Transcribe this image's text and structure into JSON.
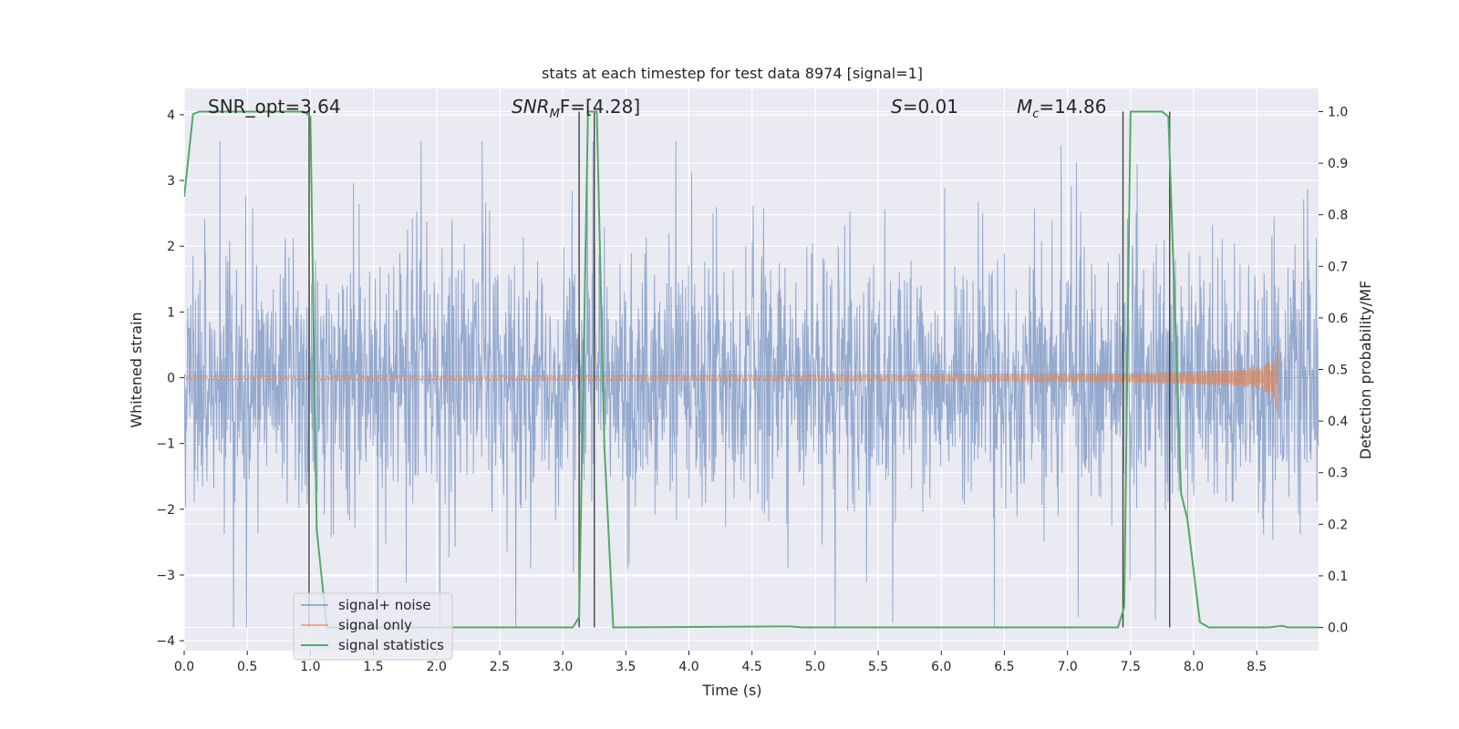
{
  "chart_data": {
    "type": "line",
    "title": "stats at each timestep for test data 8974 [signal=1]",
    "xlabel": "Time (s)",
    "ylabel_left": "Whitened strain",
    "ylabel_right": "Detection probability/MF",
    "xlim": [
      0.0,
      8.99
    ],
    "ylim_left": [
      -4.15,
      4.4
    ],
    "ylim_right": [
      -0.045,
      1.045
    ],
    "xticks": [
      "0.0",
      "0.5",
      "1.0",
      "1.5",
      "2.0",
      "2.5",
      "3.0",
      "3.5",
      "4.0",
      "4.5",
      "5.0",
      "5.5",
      "6.0",
      "6.5",
      "7.0",
      "7.5",
      "8.0",
      "8.5"
    ],
    "yticks_left": [
      "−4",
      "−3",
      "−2",
      "−1",
      "0",
      "1",
      "2",
      "3",
      "4"
    ],
    "yticks_right": [
      "0.0",
      "0.1",
      "0.2",
      "0.3",
      "0.4",
      "0.5",
      "0.6",
      "0.7",
      "0.8",
      "0.9",
      "1.0"
    ],
    "grid": true,
    "background": "#eaeaf2",
    "annotations": {
      "snr_opt": "SNR_opt=3.64",
      "snr_mf_base": "SNR",
      "snr_mf_sub": "M",
      "snr_mf_rest": "F=[4.28]",
      "s_base": "S",
      "s_rest": "=0.01",
      "mc_base": "M",
      "mc_sub": "c",
      "mc_rest": "=14.86"
    },
    "legend": {
      "placement": "lower-left",
      "entries": [
        {
          "label": "signal+ noise",
          "color": "#4c72b0"
        },
        {
          "label": "signal only",
          "color": "#dd8452"
        },
        {
          "label": "signal statistics",
          "color": "#55a868"
        }
      ]
    },
    "series": [
      {
        "name": "signal+ noise",
        "color": "#4c72b0",
        "axis": "left",
        "t_range": [
          0.0,
          8.99
        ],
        "approx_band": [
          -1.6,
          1.7
        ],
        "approx_peak_range": [
          -3.8,
          3.6
        ]
      },
      {
        "name": "signal only",
        "color": "#dd8452",
        "axis": "left",
        "merger_time": 8.67,
        "peak_amplitude": 0.85
      },
      {
        "name": "signal statistics",
        "color": "#55a868",
        "axis": "right",
        "x": [
          0.0,
          0.07,
          0.12,
          0.95,
          1.0,
          1.05,
          1.13,
          1.2,
          3.08,
          3.13,
          3.2,
          3.27,
          3.33,
          3.4,
          4.8,
          4.9,
          7.4,
          7.45,
          7.5,
          7.75,
          7.8,
          7.9,
          7.95,
          8.05,
          8.12,
          8.6,
          8.7,
          8.75,
          8.99
        ],
        "y": [
          0.835,
          0.995,
          1.0,
          1.0,
          0.99,
          0.19,
          0.0,
          0.0,
          0.0,
          0.02,
          1.0,
          1.0,
          0.35,
          0.0,
          0.002,
          0.0,
          0.0,
          0.04,
          1.0,
          1.0,
          0.99,
          0.26,
          0.21,
          0.01,
          0.0,
          0.0,
          0.003,
          0.0,
          0.0
        ]
      }
    ],
    "vertical_lines": [
      {
        "x": 0.99,
        "y_range": [
          -0.0,
          1.0
        ]
      },
      {
        "x": 3.13,
        "y_range": [
          0.0,
          1.0
        ]
      },
      {
        "x": 3.25,
        "y_range": [
          0.0,
          1.0
        ]
      },
      {
        "x": 7.44,
        "y_range": [
          0.0,
          1.0
        ]
      },
      {
        "x": 7.81,
        "y_range": [
          0.0,
          1.0
        ]
      }
    ]
  }
}
